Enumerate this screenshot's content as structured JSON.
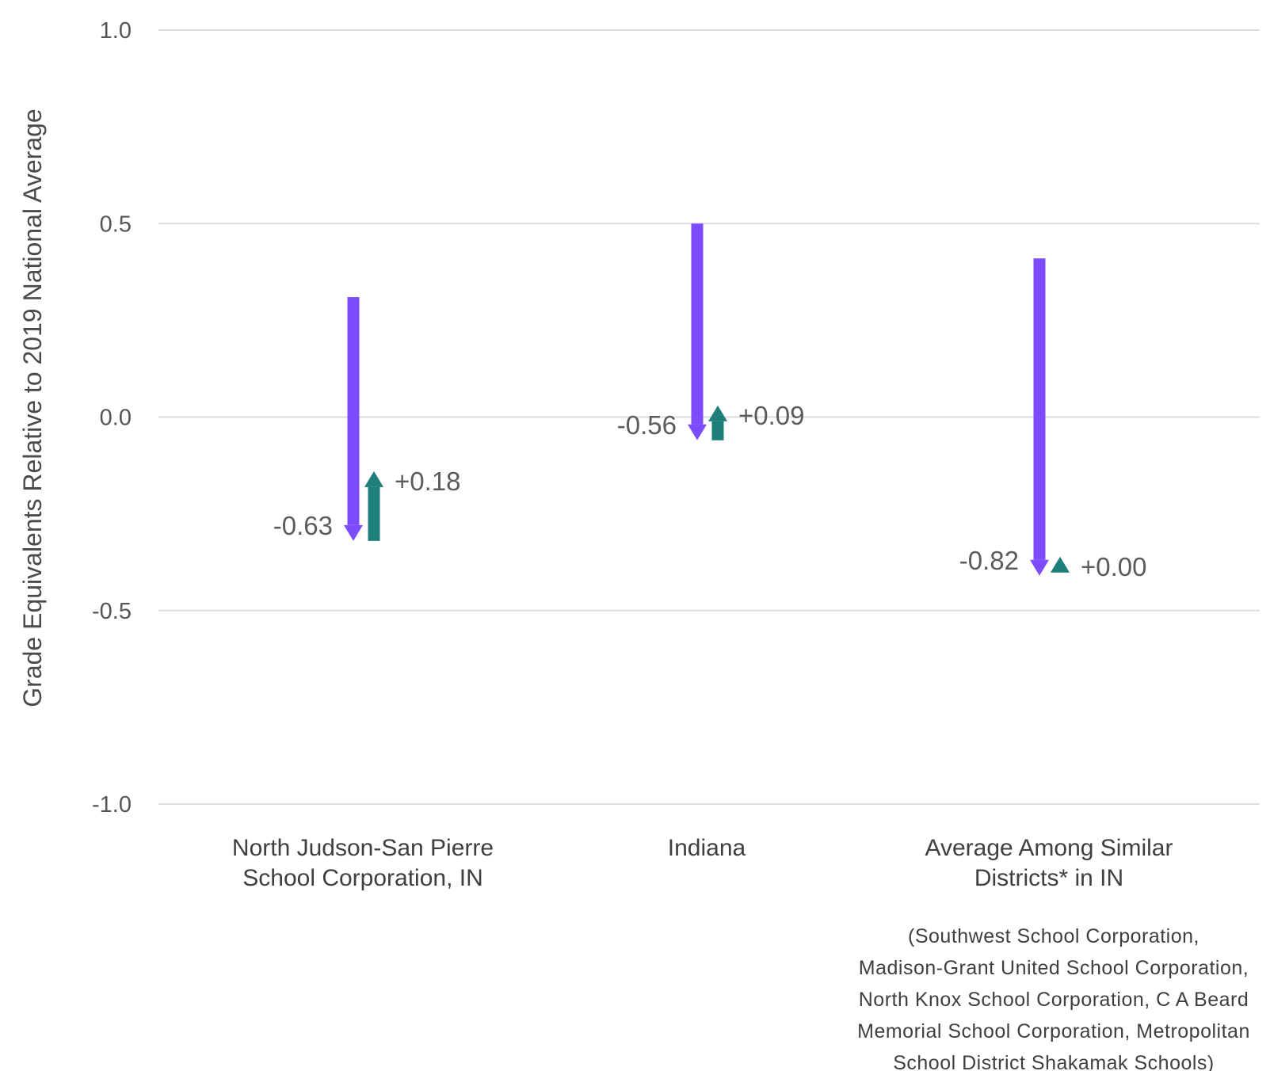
{
  "chart_data": {
    "type": "arrow",
    "ylabel": "Grade Equivalents Relative to 2019 National Average",
    "ylim": [
      -1.0,
      1.0
    ],
    "yticks": [
      "1.0",
      "0.5",
      "0.0",
      "-0.5",
      "-1.0"
    ],
    "ytick_values": [
      1.0,
      0.5,
      0.0,
      -0.5,
      -1.0
    ],
    "grid": true,
    "colors": {
      "decline": "#7c4dff",
      "recovery": "#1e7f7a"
    },
    "categories": [
      {
        "label_lines": [
          "North Judson-San Pierre",
          "School Corporation, IN"
        ],
        "start": 0.31,
        "decline": -0.63,
        "decline_label": "-0.63",
        "recovery": 0.18,
        "recovery_label": "+0.18"
      },
      {
        "label_lines": [
          "Indiana"
        ],
        "start": 0.5,
        "decline": -0.56,
        "decline_label": "-0.56",
        "recovery": 0.09,
        "recovery_label": "+0.09"
      },
      {
        "label_lines": [
          "Average Among Similar",
          "Districts* in IN"
        ],
        "start": 0.41,
        "decline": -0.82,
        "decline_label": "-0.82",
        "recovery": 0.0,
        "recovery_label": "+0.00"
      }
    ],
    "footnote_lines": [
      "(Southwest School Corporation,",
      "Madison-Grant United School Corporation,",
      "North Knox School Corporation, C A Beard",
      "Memorial School Corporation, Metropolitan",
      "School District Shakamak Schools)"
    ]
  }
}
